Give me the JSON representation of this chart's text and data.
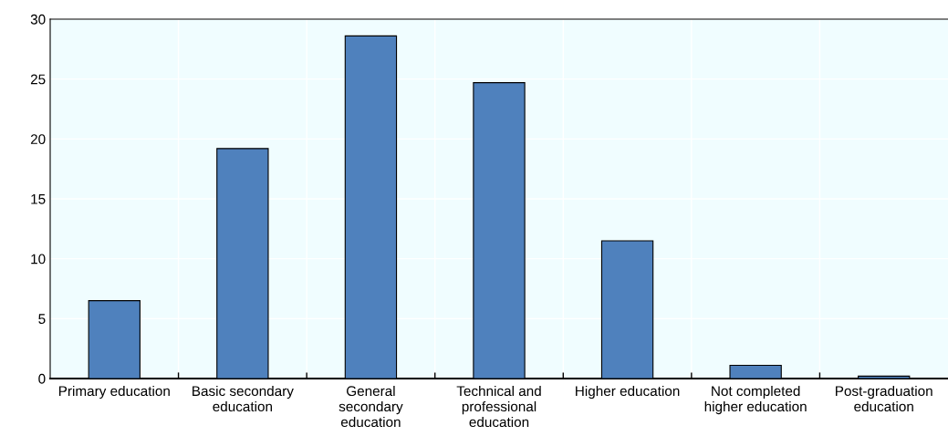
{
  "chart_data": {
    "type": "bar",
    "categories": [
      "Primary education",
      "Basic secondary education",
      "General secondary education",
      "Technical and professional education",
      "Higher education",
      "Not completed higher education",
      "Post-graduation education"
    ],
    "values": [
      6.5,
      19.2,
      28.6,
      24.7,
      11.5,
      1.1,
      0.2
    ],
    "color": "#4f81bd",
    "ylim": [
      0,
      30
    ],
    "yticks": [
      0,
      5,
      10,
      15,
      20,
      25,
      30
    ],
    "grid": true
  }
}
